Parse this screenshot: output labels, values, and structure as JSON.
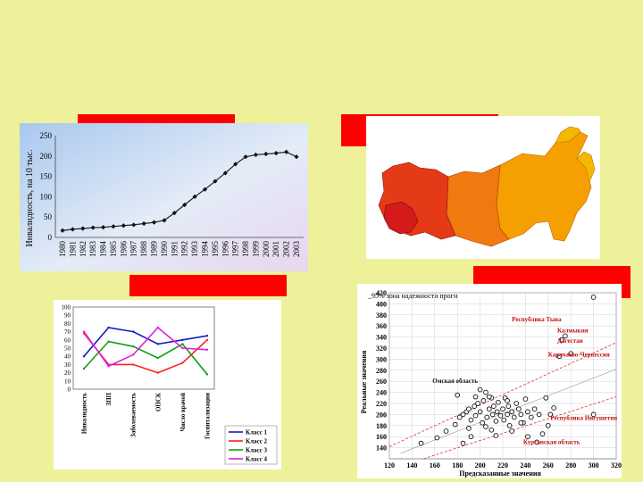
{
  "colors": {
    "background": "#eef19a",
    "label_bar": "#ff0000",
    "line_chart_line": "#222222",
    "map_dark": "#d42020",
    "map_mid": "#f07a10",
    "map_light": "#f5b800"
  },
  "chart_data": [
    {
      "type": "line",
      "ylabel": "Инвалидность, на 10 тыс.",
      "ylim": [
        0,
        250
      ],
      "yticks": [
        0,
        50,
        100,
        150,
        200,
        250
      ],
      "grid": false,
      "x": [
        "1980",
        "1981",
        "1982",
        "1983",
        "1984",
        "1985",
        "1986",
        "1987",
        "1988",
        "1989",
        "1990",
        "1991",
        "1992",
        "1993",
        "1994",
        "1995",
        "1996",
        "1997",
        "1998",
        "1999",
        "2000",
        "2001",
        "2002",
        "2003"
      ],
      "series": [
        {
          "values": [
            17,
            20,
            22,
            24,
            25,
            27,
            29,
            31,
            34,
            37,
            42,
            60,
            80,
            100,
            118,
            138,
            158,
            180,
            198,
            203,
            205,
            207,
            210,
            198
          ]
        }
      ]
    },
    {
      "type": "line",
      "ylim": [
        0,
        100
      ],
      "yticks": [
        0,
        10,
        20,
        30,
        40,
        50,
        60,
        70,
        80,
        90,
        100
      ],
      "categories": [
        "Инвалидность",
        "ЗПП",
        "Заболеваемость",
        "ОПСК",
        "Число врачей",
        "Госпитализации"
      ],
      "legend": "bottom-right",
      "series": [
        {
          "name": "Класс 1",
          "color": "#1020c0",
          "values": [
            40,
            75,
            70,
            55,
            60,
            65
          ]
        },
        {
          "name": "Класс 2",
          "color": "#ff2020",
          "values": [
            68,
            30,
            30,
            20,
            32,
            60
          ]
        },
        {
          "name": "Класс 3",
          "color": "#10a010",
          "values": [
            25,
            58,
            52,
            38,
            55,
            18
          ]
        },
        {
          "name": "Класс 4",
          "color": "#e020e0",
          "values": [
            70,
            28,
            42,
            75,
            50,
            48
          ]
        }
      ]
    },
    {
      "type": "scatter",
      "annotations_header": "_95% зона надежности прогн",
      "xlabel": "Предсказанные значения",
      "ylabel": "Реальные значения",
      "xlim": [
        120,
        320
      ],
      "ylim": [
        120,
        420
      ],
      "xticks": [
        120,
        140,
        160,
        180,
        200,
        220,
        240,
        260,
        280,
        300,
        320
      ],
      "yticks": [
        140,
        160,
        180,
        200,
        220,
        240,
        260,
        280,
        300,
        320,
        340,
        360,
        380,
        400,
        420
      ],
      "grid": true,
      "points": [
        [
          148,
          148
        ],
        [
          162,
          158
        ],
        [
          170,
          170
        ],
        [
          178,
          182
        ],
        [
          182,
          195
        ],
        [
          185,
          200
        ],
        [
          188,
          205
        ],
        [
          190,
          210
        ],
        [
          192,
          190
        ],
        [
          195,
          215
        ],
        [
          196,
          198
        ],
        [
          198,
          220
        ],
        [
          200,
          205
        ],
        [
          202,
          185
        ],
        [
          203,
          225
        ],
        [
          205,
          240
        ],
        [
          206,
          195
        ],
        [
          208,
          210
        ],
        [
          210,
          230
        ],
        [
          211,
          200
        ],
        [
          212,
          215
        ],
        [
          214,
          188
        ],
        [
          215,
          205
        ],
        [
          216,
          222
        ],
        [
          218,
          198
        ],
        [
          220,
          210
        ],
        [
          221,
          190
        ],
        [
          222,
          230
        ],
        [
          224,
          200
        ],
        [
          225,
          215
        ],
        [
          226,
          180
        ],
        [
          228,
          205
        ],
        [
          230,
          195
        ],
        [
          232,
          220
        ],
        [
          234,
          210
        ],
        [
          236,
          200
        ],
        [
          238,
          185
        ],
        [
          240,
          228
        ],
        [
          242,
          205
        ],
        [
          245,
          195
        ],
        [
          248,
          210
        ],
        [
          250,
          150
        ],
        [
          252,
          200
        ],
        [
          255,
          165
        ],
        [
          258,
          230
        ],
        [
          260,
          180
        ],
        [
          262,
          200
        ],
        [
          265,
          212
        ],
        [
          270,
          305
        ],
        [
          272,
          335
        ],
        [
          275,
          342
        ],
        [
          280,
          310
        ],
        [
          300,
          200
        ],
        [
          185,
          148
        ],
        [
          192,
          160
        ],
        [
          205,
          178
        ],
        [
          196,
          232
        ],
        [
          200,
          245
        ],
        [
          180,
          235
        ],
        [
          210,
          172
        ],
        [
          214,
          162
        ],
        [
          190,
          175
        ],
        [
          224,
          225
        ],
        [
          208,
          232
        ],
        [
          236,
          185
        ],
        [
          242,
          160
        ],
        [
          228,
          170
        ],
        [
          300,
          412
        ]
      ],
      "labels": [
        {
          "text": "Республика Тыва",
          "x": 228,
          "y": 368
        },
        {
          "text": "Калмыкия",
          "x": 268,
          "y": 348
        },
        {
          "text": "Дагестан",
          "x": 268,
          "y": 330
        },
        {
          "text": "Карачаево-Черкессия",
          "x": 260,
          "y": 305
        },
        {
          "text": "Омская область",
          "x": 158,
          "y": 257
        },
        {
          "text": "Республика Ингушетия",
          "x": 262,
          "y": 190
        },
        {
          "text": "Курганская область",
          "x": 238,
          "y": 147
        }
      ]
    }
  ]
}
